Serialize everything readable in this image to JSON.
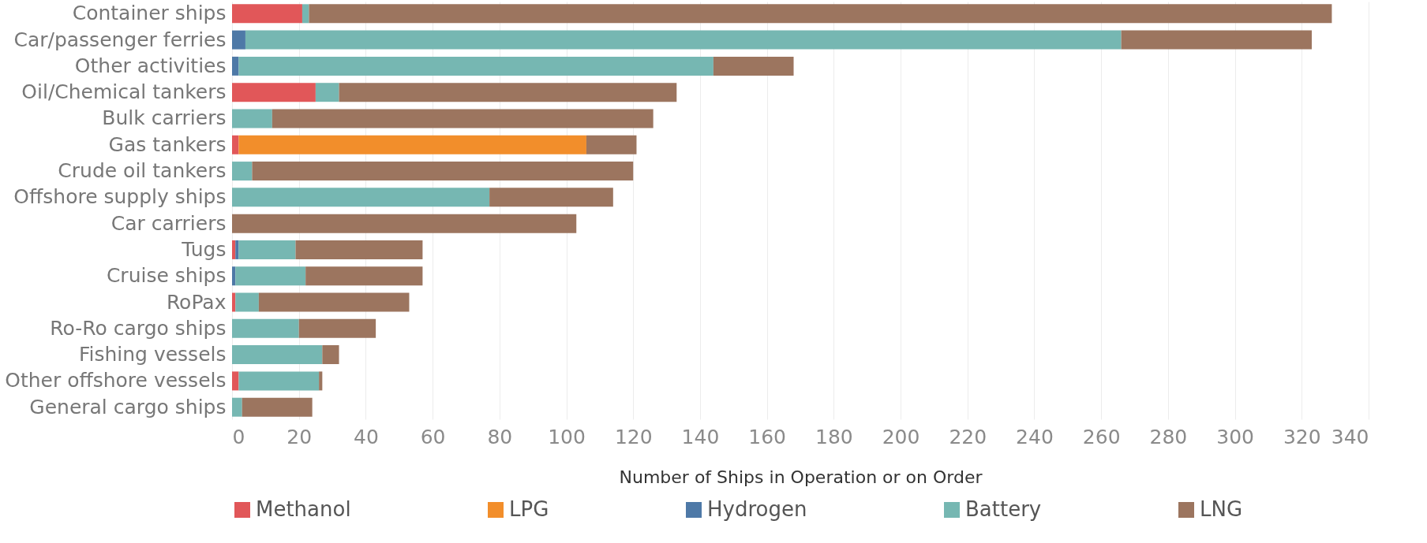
{
  "chart_data": {
    "type": "bar",
    "orientation": "horizontal",
    "stacked": true,
    "xlabel": "Number of Ships in Operation or on Order",
    "categories": [
      "Container ships",
      "Car/passenger ferries",
      "Other activities",
      "Oil/Chemical tankers",
      "Bulk carriers",
      "Gas tankers",
      "Crude oil tankers",
      "Offshore supply ships",
      "Car carriers",
      "Tugs",
      "Cruise ships",
      "RoPax",
      "Ro-Ro cargo ships",
      "Fishing vessels",
      "Other offshore vessels",
      "General cargo ships"
    ],
    "series": [
      {
        "name": "Methanol",
        "color": "#e15759",
        "values": [
          21,
          0,
          0,
          25,
          0,
          2,
          0,
          0,
          0,
          1,
          0,
          1,
          0,
          0,
          2,
          0
        ]
      },
      {
        "name": "LPG",
        "color": "#f28e2b",
        "values": [
          0,
          0,
          0,
          0,
          0,
          104,
          0,
          0,
          0,
          0,
          0,
          0,
          0,
          0,
          0,
          0
        ]
      },
      {
        "name": "Hydrogen",
        "color": "#4e79a7",
        "values": [
          0,
          4,
          2,
          0,
          0,
          0,
          0,
          0,
          0,
          1,
          1,
          0,
          0,
          0,
          0,
          0
        ]
      },
      {
        "name": "Battery",
        "color": "#76b7b2",
        "values": [
          2,
          262,
          142,
          7,
          12,
          0,
          6,
          77,
          0,
          17,
          21,
          7,
          20,
          27,
          24,
          3
        ]
      },
      {
        "name": "LNG",
        "color": "#9c755f",
        "values": [
          306,
          57,
          24,
          101,
          114,
          15,
          114,
          37,
          103,
          38,
          35,
          45,
          23,
          5,
          1,
          21
        ]
      }
    ],
    "xlim": [
      0,
      340
    ],
    "xticks": [
      0,
      20,
      40,
      60,
      80,
      100,
      120,
      140,
      160,
      180,
      200,
      220,
      240,
      260,
      280,
      300,
      320,
      340
    ],
    "grid": "x",
    "legend": "bottom"
  }
}
